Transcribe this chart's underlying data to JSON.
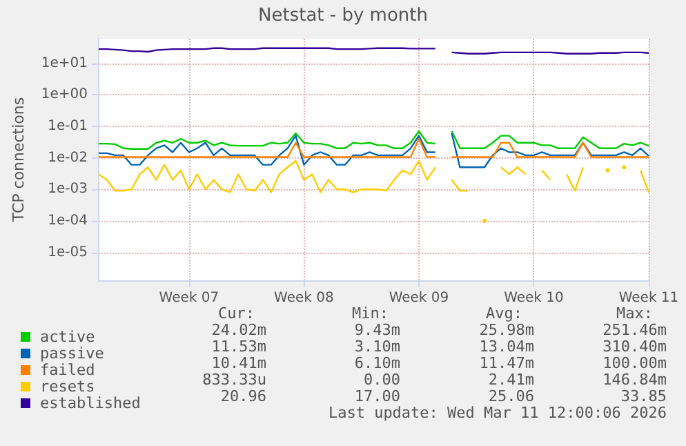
{
  "chart_data": {
    "type": "line",
    "title": "Netstat - by month",
    "ylabel": "TCP connections",
    "log": "y",
    "grid": true,
    "legend": "bottom left",
    "categories": [
      null,
      null,
      null,
      null,
      null,
      null,
      null,
      null,
      null,
      null,
      null,
      "Week 07",
      null,
      null,
      null,
      null,
      null,
      null,
      null,
      null,
      null,
      null,
      null,
      null,
      null,
      "Week 08",
      null,
      null,
      null,
      null,
      null,
      null,
      null,
      null,
      null,
      null,
      null,
      null,
      null,
      "Week 09",
      null,
      null,
      null,
      null,
      null,
      null,
      null,
      null,
      null,
      null,
      null,
      null,
      null,
      "Week 10",
      null,
      null,
      null,
      null,
      null,
      null,
      null,
      null,
      null,
      null,
      null,
      null,
      null,
      "Week 11"
    ],
    "ylim": [
      1.3e-06,
      60
    ],
    "yticks": [
      {
        "value": 1e-05,
        "label": "1e-05"
      },
      {
        "value": 0.0001,
        "label": "1e-04"
      },
      {
        "value": 0.001,
        "label": "1e-03"
      },
      {
        "value": 0.01,
        "label": "1e-02"
      },
      {
        "value": 0.1,
        "label": "1e-01"
      },
      {
        "value": 1,
        "label": "1e+00"
      },
      {
        "value": 10,
        "label": "1e+01"
      }
    ],
    "series": [
      {
        "name": "active",
        "color": "#00cc00",
        "values": [
          0.028,
          0.028,
          0.027,
          0.02,
          0.019,
          0.019,
          0.019,
          0.03,
          0.035,
          0.03,
          0.04,
          0.03,
          0.03,
          0.035,
          0.025,
          0.03,
          0.025,
          0.024,
          0.024,
          0.024,
          0.024,
          0.03,
          0.028,
          0.03,
          0.06,
          0.03,
          0.028,
          0.028,
          0.025,
          0.02,
          0.02,
          0.03,
          0.028,
          0.03,
          0.025,
          0.025,
          0.02,
          0.02,
          0.03,
          0.07,
          0.03,
          0.028,
          null,
          0.07,
          0.02,
          0.02,
          0.02,
          0.02,
          0.03,
          0.05,
          0.05,
          0.03,
          0.03,
          0.03,
          0.025,
          0.025,
          0.02,
          0.02,
          0.02,
          0.045,
          0.03,
          0.02,
          0.02,
          0.02,
          0.028,
          0.025,
          0.03,
          0.024
        ]
      },
      {
        "name": "passive",
        "color": "#0066b3",
        "values": [
          0.014,
          0.014,
          0.012,
          0.012,
          0.006,
          0.006,
          0.012,
          0.02,
          0.025,
          0.015,
          0.03,
          0.015,
          0.02,
          0.03,
          0.012,
          0.02,
          0.012,
          0.012,
          0.012,
          0.012,
          0.006,
          0.006,
          0.012,
          0.02,
          0.05,
          0.006,
          0.012,
          0.015,
          0.012,
          0.006,
          0.006,
          0.012,
          0.012,
          0.015,
          0.012,
          0.012,
          0.012,
          0.012,
          0.02,
          0.05,
          0.015,
          0.015,
          null,
          0.06,
          0.005,
          0.005,
          0.005,
          0.005,
          0.012,
          0.02,
          0.015,
          0.015,
          0.012,
          0.012,
          0.015,
          0.012,
          0.012,
          0.012,
          0.012,
          0.03,
          0.012,
          0.012,
          0.012,
          0.012,
          0.015,
          0.012,
          0.02,
          0.0115
        ]
      },
      {
        "name": "failed",
        "color": "#ff8000",
        "values": [
          0.0105,
          0.0105,
          0.0105,
          0.0105,
          0.0105,
          0.0105,
          0.0105,
          0.0105,
          0.0105,
          0.0105,
          0.0105,
          0.0105,
          0.0105,
          0.0105,
          0.0105,
          0.0105,
          0.0105,
          0.0105,
          0.0105,
          0.0105,
          0.0105,
          0.0105,
          0.0105,
          0.0105,
          0.03,
          0.0105,
          0.0105,
          0.0105,
          0.0105,
          0.0105,
          0.0105,
          0.0105,
          0.0105,
          0.0105,
          0.0105,
          0.0105,
          0.0105,
          0.0105,
          0.0105,
          0.04,
          0.0105,
          0.0105,
          null,
          0.0105,
          0.0105,
          0.0105,
          0.0105,
          0.0105,
          0.0105,
          0.03,
          0.03,
          0.0105,
          0.0105,
          0.0105,
          0.0105,
          0.0105,
          0.0105,
          0.0105,
          0.0105,
          0.03,
          0.0105,
          0.0105,
          0.0105,
          0.0105,
          0.0105,
          0.0105,
          0.0105,
          0.0105
        ]
      },
      {
        "name": "resets",
        "color": "#ffcc00",
        "values": [
          0.003,
          0.002,
          0.0009,
          0.0009,
          0.001,
          0.003,
          0.005,
          0.002,
          0.006,
          0.002,
          0.004,
          0.001,
          0.003,
          0.001,
          0.002,
          0.001,
          0.0008,
          0.003,
          0.001,
          0.0009,
          0.002,
          0.0008,
          0.003,
          0.005,
          0.008,
          0.002,
          0.003,
          0.0008,
          0.002,
          0.001,
          0.001,
          0.0008,
          0.001,
          0.001,
          0.001,
          0.0009,
          0.002,
          0.004,
          0.003,
          0.008,
          0.002,
          0.005,
          null,
          0.002,
          0.0009,
          0.0009,
          null,
          0.0001,
          null,
          0.005,
          0.003,
          0.005,
          0.003,
          null,
          0.004,
          0.002,
          null,
          0.003,
          0.0009,
          0.005,
          null,
          null,
          0.004,
          null,
          0.005,
          null,
          0.004,
          0.0008
        ]
      },
      {
        "name": "established",
        "color": "#330099",
        "values": [
          28,
          28,
          27,
          26,
          24,
          24,
          23,
          26,
          27,
          28,
          28,
          28,
          28,
          28,
          30,
          30,
          28,
          28,
          28,
          28,
          30,
          30,
          30,
          30,
          30,
          30,
          30,
          30,
          30,
          28,
          28,
          28,
          28,
          29,
          30,
          30,
          30,
          30,
          29,
          29,
          29,
          29,
          null,
          22,
          21,
          20,
          20,
          20,
          21,
          22,
          22,
          22,
          22,
          22,
          22,
          22,
          21,
          20,
          20,
          20,
          20,
          21,
          21,
          21,
          22,
          22,
          22,
          21
        ]
      }
    ],
    "annotations": [
      "Cur:",
      "Min:",
      "Avg:",
      "Max:",
      "24.02m",
      "9.43m",
      "25.98m",
      "251.46m",
      "11.53m",
      "3.10m",
      "13.04m",
      "310.40m",
      "10.41m",
      "6.10m",
      "11.47m",
      "100.00m",
      "833.33u",
      "0.00",
      "2.41m",
      "146.84m",
      "20.96",
      "17.00",
      "25.06",
      "33.85",
      "Last update: Wed Mar 11 12:00:06 2026"
    ]
  }
}
